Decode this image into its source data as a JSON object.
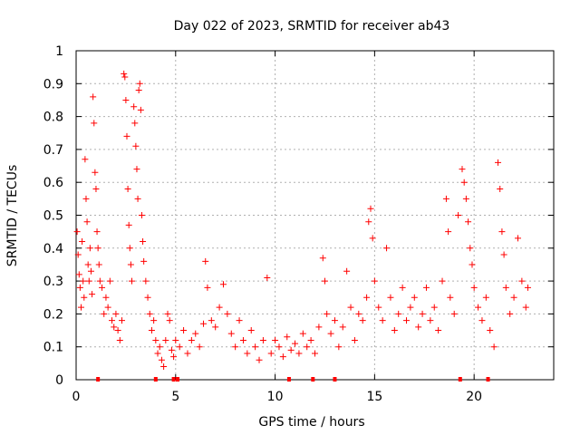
{
  "chart_data": {
    "type": "scatter",
    "title": "Day 022 of 2023, SRMTID for receiver ab43",
    "xlabel": "GPS time / hours",
    "ylabel": "SRMTID / TECUs",
    "xlim": [
      0,
      24
    ],
    "ylim": [
      0,
      1
    ],
    "xticks": [
      0,
      5,
      10,
      15,
      20
    ],
    "xtick_labels": [
      "0",
      "5",
      "10",
      "15",
      "20"
    ],
    "yticks": [
      0,
      0.1,
      0.2,
      0.3,
      0.4,
      0.5,
      0.6,
      0.7,
      0.8,
      0.9,
      1
    ],
    "ytick_labels": [
      "0",
      "0.1",
      "0.2",
      "0.3",
      "0.4",
      "0.5",
      "0.6",
      "0.7",
      "0.8",
      "0.9",
      "1"
    ],
    "grid": true,
    "marker": "+",
    "marker_color": "#ff0000",
    "series": [
      {
        "name": "SRMTID",
        "color": "#ff0000",
        "points": [
          [
            0.05,
            0.45
          ],
          [
            0.1,
            0.38
          ],
          [
            0.15,
            0.32
          ],
          [
            0.2,
            0.28
          ],
          [
            0.25,
            0.22
          ],
          [
            0.3,
            0.42
          ],
          [
            0.35,
            0.3
          ],
          [
            0.4,
            0.25
          ],
          [
            0.45,
            0.67
          ],
          [
            0.5,
            0.55
          ],
          [
            0.55,
            0.48
          ],
          [
            0.6,
            0.35
          ],
          [
            0.65,
            0.3
          ],
          [
            0.7,
            0.4
          ],
          [
            0.75,
            0.33
          ],
          [
            0.8,
            0.26
          ],
          [
            0.85,
            0.86
          ],
          [
            0.9,
            0.78
          ],
          [
            0.95,
            0.63
          ],
          [
            1.0,
            0.58
          ],
          [
            1.05,
            0.45
          ],
          [
            1.1,
            0.4
          ],
          [
            1.15,
            0.35
          ],
          [
            1.2,
            0.3
          ],
          [
            1.3,
            0.28
          ],
          [
            1.4,
            0.2
          ],
          [
            1.5,
            0.25
          ],
          [
            1.6,
            0.22
          ],
          [
            1.7,
            0.3
          ],
          [
            1.8,
            0.18
          ],
          [
            1.9,
            0.16
          ],
          [
            2.0,
            0.2
          ],
          [
            2.1,
            0.15
          ],
          [
            2.2,
            0.12
          ],
          [
            2.3,
            0.18
          ],
          [
            2.4,
            0.93
          ],
          [
            2.45,
            0.92
          ],
          [
            2.5,
            0.85
          ],
          [
            2.55,
            0.74
          ],
          [
            2.6,
            0.58
          ],
          [
            2.65,
            0.47
          ],
          [
            2.7,
            0.4
          ],
          [
            2.75,
            0.35
          ],
          [
            2.8,
            0.3
          ],
          [
            2.9,
            0.83
          ],
          [
            2.95,
            0.78
          ],
          [
            3.0,
            0.71
          ],
          [
            3.05,
            0.64
          ],
          [
            3.1,
            0.55
          ],
          [
            3.15,
            0.88
          ],
          [
            3.2,
            0.9
          ],
          [
            3.25,
            0.82
          ],
          [
            3.3,
            0.5
          ],
          [
            3.35,
            0.42
          ],
          [
            3.4,
            0.36
          ],
          [
            3.5,
            0.3
          ],
          [
            3.6,
            0.25
          ],
          [
            3.7,
            0.2
          ],
          [
            3.8,
            0.15
          ],
          [
            3.9,
            0.18
          ],
          [
            4.0,
            0.12
          ],
          [
            4.1,
            0.08
          ],
          [
            4.2,
            0.1
          ],
          [
            4.3,
            0.06
          ],
          [
            4.4,
            0.04
          ],
          [
            4.5,
            0.12
          ],
          [
            4.6,
            0.2
          ],
          [
            4.7,
            0.18
          ],
          [
            4.8,
            0.09
          ],
          [
            4.9,
            0.07
          ],
          [
            5.0,
            0.12
          ],
          [
            5.2,
            0.1
          ],
          [
            5.4,
            0.15
          ],
          [
            5.6,
            0.08
          ],
          [
            5.8,
            0.12
          ],
          [
            6.0,
            0.14
          ],
          [
            6.2,
            0.1
          ],
          [
            6.4,
            0.17
          ],
          [
            6.5,
            0.36
          ],
          [
            6.6,
            0.28
          ],
          [
            6.8,
            0.18
          ],
          [
            7.0,
            0.16
          ],
          [
            7.2,
            0.22
          ],
          [
            7.4,
            0.29
          ],
          [
            7.6,
            0.2
          ],
          [
            7.8,
            0.14
          ],
          [
            8.0,
            0.1
          ],
          [
            8.2,
            0.18
          ],
          [
            8.4,
            0.12
          ],
          [
            8.6,
            0.08
          ],
          [
            8.8,
            0.15
          ],
          [
            9.0,
            0.1
          ],
          [
            9.2,
            0.06
          ],
          [
            9.4,
            0.12
          ],
          [
            9.6,
            0.31
          ],
          [
            9.8,
            0.08
          ],
          [
            10.0,
            0.12
          ],
          [
            10.2,
            0.1
          ],
          [
            10.4,
            0.07
          ],
          [
            10.6,
            0.13
          ],
          [
            10.8,
            0.09
          ],
          [
            11.0,
            0.11
          ],
          [
            11.2,
            0.08
          ],
          [
            11.4,
            0.14
          ],
          [
            11.6,
            0.1
          ],
          [
            11.8,
            0.12
          ],
          [
            12.0,
            0.08
          ],
          [
            12.2,
            0.16
          ],
          [
            12.4,
            0.37
          ],
          [
            12.5,
            0.3
          ],
          [
            12.6,
            0.2
          ],
          [
            12.8,
            0.14
          ],
          [
            13.0,
            0.18
          ],
          [
            13.2,
            0.1
          ],
          [
            13.4,
            0.16
          ],
          [
            13.6,
            0.33
          ],
          [
            13.8,
            0.22
          ],
          [
            14.0,
            0.12
          ],
          [
            14.2,
            0.2
          ],
          [
            14.4,
            0.18
          ],
          [
            14.6,
            0.25
          ],
          [
            14.7,
            0.48
          ],
          [
            14.8,
            0.52
          ],
          [
            14.9,
            0.43
          ],
          [
            15.0,
            0.3
          ],
          [
            15.2,
            0.22
          ],
          [
            15.4,
            0.18
          ],
          [
            15.6,
            0.4
          ],
          [
            15.8,
            0.25
          ],
          [
            16.0,
            0.15
          ],
          [
            16.2,
            0.2
          ],
          [
            16.4,
            0.28
          ],
          [
            16.6,
            0.18
          ],
          [
            16.8,
            0.22
          ],
          [
            17.0,
            0.25
          ],
          [
            17.2,
            0.16
          ],
          [
            17.4,
            0.2
          ],
          [
            17.6,
            0.28
          ],
          [
            17.8,
            0.18
          ],
          [
            18.0,
            0.22
          ],
          [
            18.2,
            0.15
          ],
          [
            18.4,
            0.3
          ],
          [
            18.6,
            0.55
          ],
          [
            18.7,
            0.45
          ],
          [
            18.8,
            0.25
          ],
          [
            19.0,
            0.2
          ],
          [
            19.2,
            0.5
          ],
          [
            19.4,
            0.64
          ],
          [
            19.5,
            0.6
          ],
          [
            19.6,
            0.55
          ],
          [
            19.7,
            0.48
          ],
          [
            19.8,
            0.4
          ],
          [
            19.9,
            0.35
          ],
          [
            20.0,
            0.28
          ],
          [
            20.2,
            0.22
          ],
          [
            20.4,
            0.18
          ],
          [
            20.6,
            0.25
          ],
          [
            20.8,
            0.15
          ],
          [
            21.0,
            0.1
          ],
          [
            21.2,
            0.66
          ],
          [
            21.3,
            0.58
          ],
          [
            21.4,
            0.45
          ],
          [
            21.5,
            0.38
          ],
          [
            21.6,
            0.28
          ],
          [
            21.8,
            0.2
          ],
          [
            22.0,
            0.25
          ],
          [
            22.2,
            0.43
          ],
          [
            22.4,
            0.3
          ],
          [
            22.6,
            0.22
          ],
          [
            22.7,
            0.28
          ]
        ]
      }
    ],
    "gap_markers_x": [
      1.1,
      4.0,
      4.9,
      5.1,
      10.7,
      11.9,
      13.0,
      19.3,
      20.7
    ]
  }
}
